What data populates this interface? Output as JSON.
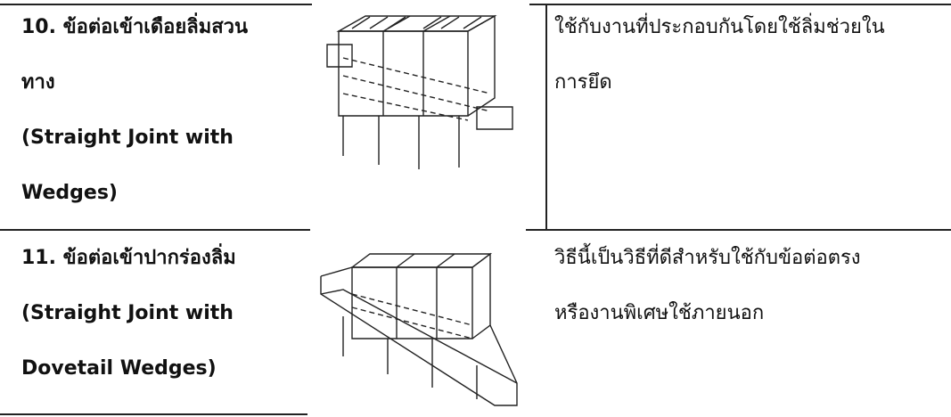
{
  "table": {
    "rows": [
      {
        "name": [
          "10. ข้อต่อเข้าเดือยลิ่มสวน",
          "ทาง",
          "(Straight Joint with",
          "Wedges)"
        ],
        "description": [
          "ใช้กับงานที่ประกอบกันโดยใช้ลิ่มช่วยใน",
          "การยึด"
        ]
      },
      {
        "name": [
          "11. ข้อต่อเข้าปากร่องลิ่ม",
          "(Straight Joint with",
          "Dovetail Wedges)"
        ],
        "description": [
          "วิธีนี้เป็นวิธีที่ดีสำหรับใช้กับข้อต่อตรง",
          "หรืองานพิเศษใช้ภายนอก"
        ]
      }
    ]
  }
}
